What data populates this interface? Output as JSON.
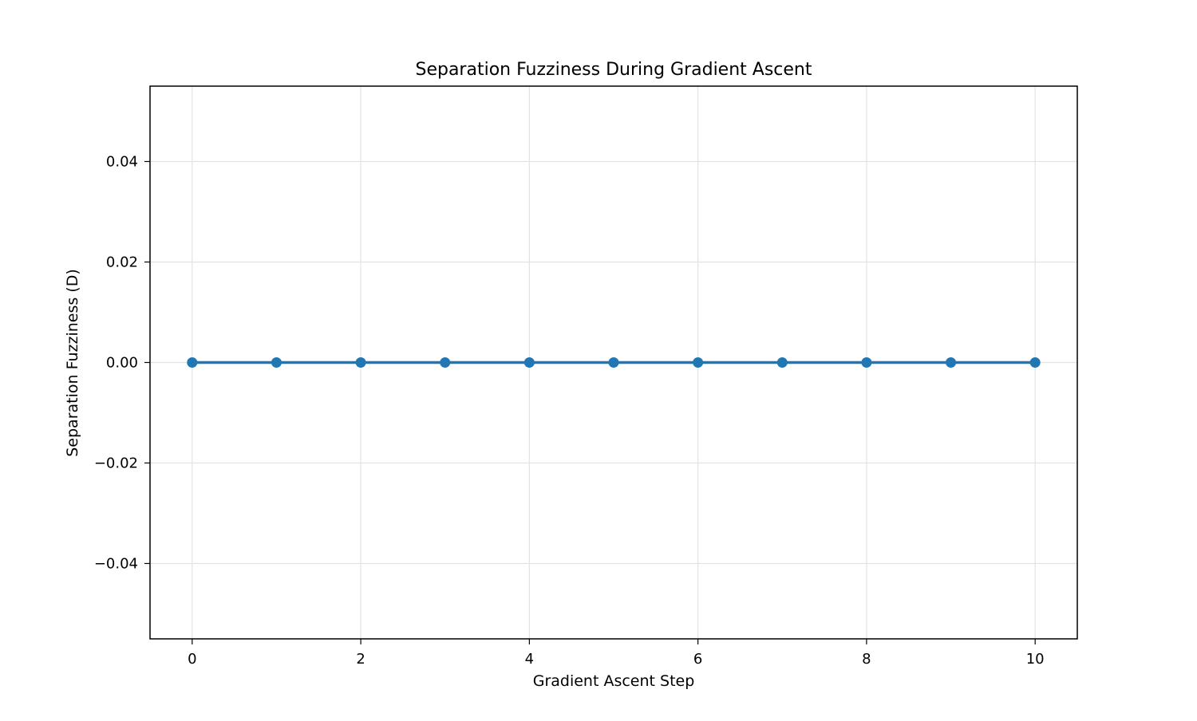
{
  "chart_data": {
    "type": "line",
    "title": "Separation Fuzziness During Gradient Ascent",
    "xlabel": "Gradient Ascent Step",
    "ylabel": "Separation Fuzziness (D)",
    "xlim": [
      -0.5,
      10.5
    ],
    "ylim": [
      -0.055,
      0.055
    ],
    "x_ticks": [
      0,
      2,
      4,
      6,
      8,
      10
    ],
    "x_tick_labels": [
      "0",
      "2",
      "4",
      "6",
      "8",
      "10"
    ],
    "y_ticks": [
      0.04,
      0.02,
      0.0,
      -0.02,
      -0.04
    ],
    "y_tick_labels": [
      "0.04",
      "0.02",
      "0.00",
      "−0.02",
      "−0.04"
    ],
    "grid": true,
    "series": [
      {
        "color": "#1f77b4",
        "marker": "circle",
        "x": [
          0,
          1,
          2,
          3,
          4,
          5,
          6,
          7,
          8,
          9,
          10
        ],
        "y": [
          0,
          0,
          0,
          0,
          0,
          0,
          0,
          0,
          0,
          0,
          0
        ]
      }
    ]
  }
}
